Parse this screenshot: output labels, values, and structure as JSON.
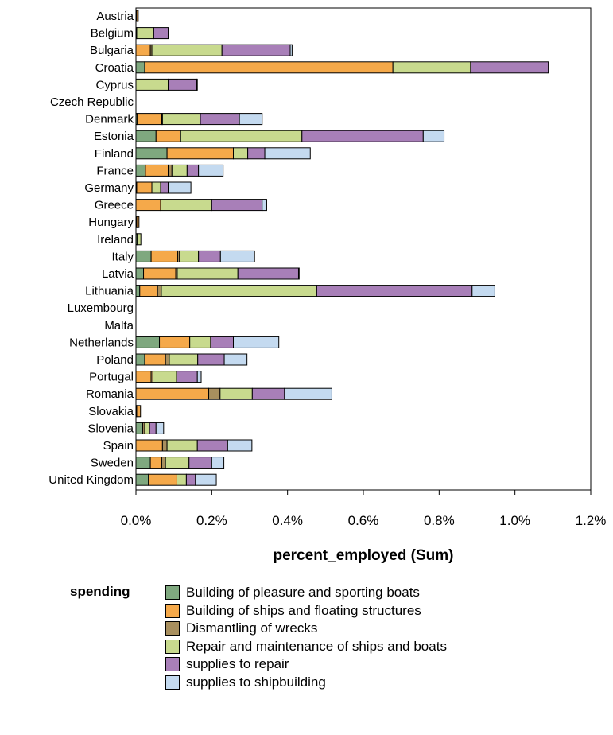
{
  "chart_data": {
    "type": "bar",
    "orientation": "horizontal",
    "stacked": true,
    "title": "",
    "xlabel": "percent_employed (Sum)",
    "ylabel": "",
    "xlim": [
      0,
      1.2
    ],
    "x_tick_values": [
      0,
      0.2,
      0.4,
      0.6,
      0.8,
      1.0,
      1.2
    ],
    "x_tick_labels": [
      "0.0%",
      "0.2%",
      "0.4%",
      "0.6%",
      "0.8%",
      "1.0%",
      "1.2%"
    ],
    "grid": false,
    "legend_title": "spending",
    "legend_position": "bottom",
    "categories": [
      "Austria",
      "Belgium",
      "Bulgaria",
      "Croatia",
      "Cyprus",
      "Czech Republic",
      "Denmark",
      "Estonia",
      "Finland",
      "France",
      "Germany",
      "Greece",
      "Hungary",
      "Ireland",
      "Italy",
      "Latvia",
      "Lithuania",
      "Luxembourg",
      "Malta",
      "Netherlands",
      "Poland",
      "Portugal",
      "Romania",
      "Slovakia",
      "Slovenia",
      "Spain",
      "Sweden",
      "United Kingdom"
    ],
    "series": [
      {
        "name": "Building of pleasure and sporting boats",
        "color": "#7fa87f",
        "values": [
          0.002,
          0.002,
          0,
          0.023,
          0,
          0,
          0.003,
          0.053,
          0.082,
          0.025,
          0.002,
          0,
          0.002,
          0.003,
          0.04,
          0.02,
          0.01,
          0,
          0,
          0.062,
          0.023,
          0,
          0,
          0.002,
          0.018,
          0,
          0.038,
          0.033
        ]
      },
      {
        "name": "Building of ships and floating structures",
        "color": "#f5a94a",
        "values": [
          0.004,
          0,
          0.038,
          0.655,
          0,
          0,
          0.065,
          0.065,
          0.175,
          0.06,
          0.04,
          0.065,
          0.006,
          0,
          0.07,
          0.085,
          0.047,
          0,
          0,
          0.08,
          0.055,
          0.04,
          0.192,
          0.01,
          0,
          0.07,
          0.03,
          0.075
        ]
      },
      {
        "name": "Dismantling of wrecks",
        "color": "#a88f5e",
        "values": [
          0,
          0,
          0.004,
          0,
          0,
          0,
          0.002,
          0,
          0,
          0.01,
          0,
          0,
          0,
          0,
          0.005,
          0.004,
          0.01,
          0,
          0,
          0,
          0.01,
          0.005,
          0.03,
          0,
          0.005,
          0.012,
          0.01,
          0
        ]
      },
      {
        "name": "Repair and maintenance of ships and boats",
        "color": "#c8da8e",
        "values": [
          0,
          0.045,
          0.185,
          0.205,
          0.085,
          0,
          0.1,
          0.32,
          0.038,
          0.04,
          0.023,
          0.135,
          0,
          0.01,
          0.05,
          0.16,
          0.41,
          0,
          0,
          0.055,
          0.075,
          0.062,
          0.085,
          0,
          0.013,
          0.08,
          0.062,
          0.025
        ]
      },
      {
        "name": "supplies to repair",
        "color": "#a87fb8",
        "values": [
          0,
          0.038,
          0.18,
          0.205,
          0.075,
          0,
          0.103,
          0.32,
          0.045,
          0.03,
          0.02,
          0.133,
          0,
          0,
          0.058,
          0.16,
          0.41,
          0,
          0,
          0.06,
          0.07,
          0.055,
          0.085,
          0,
          0.017,
          0.08,
          0.06,
          0.024
        ]
      },
      {
        "name": "supplies to shipbuilding",
        "color": "#c4daf0",
        "values": [
          0,
          0,
          0.005,
          0,
          0.002,
          0,
          0.06,
          0.055,
          0.12,
          0.065,
          0.06,
          0.012,
          0,
          0,
          0.09,
          0.001,
          0.06,
          0,
          0,
          0.12,
          0.06,
          0.01,
          0.125,
          0,
          0.02,
          0.064,
          0.032,
          0.055
        ]
      }
    ]
  }
}
